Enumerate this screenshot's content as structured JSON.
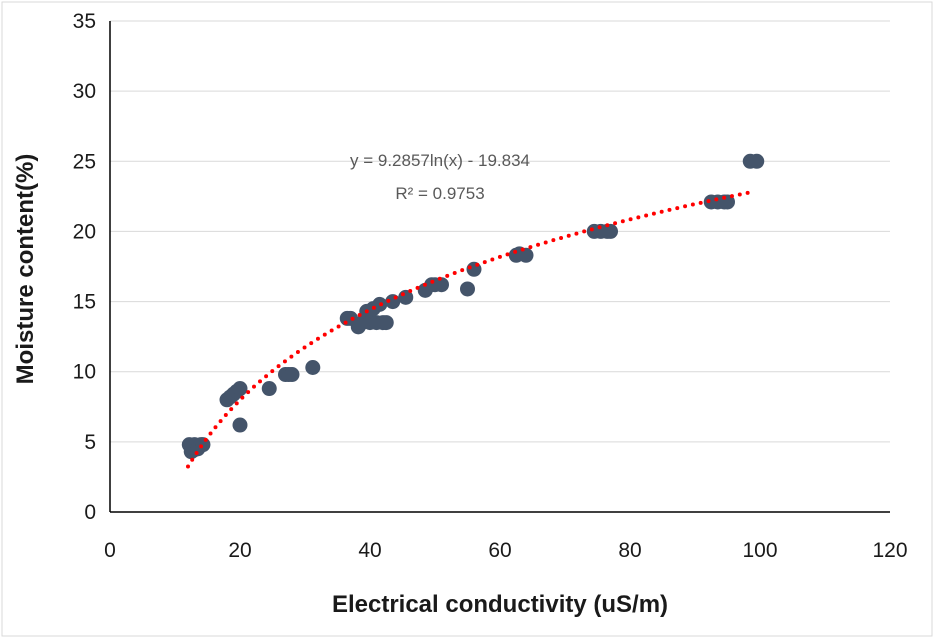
{
  "chart_data": {
    "type": "scatter",
    "title": "",
    "xlabel": "Electrical conductivity (uS/m)",
    "ylabel": "Moisture content(%)",
    "xlim": [
      0,
      120
    ],
    "ylim": [
      0,
      35
    ],
    "xticks": [
      0,
      20,
      40,
      60,
      80,
      100,
      120
    ],
    "yticks": [
      0,
      5,
      10,
      15,
      20,
      25,
      30,
      35
    ],
    "grid": "horizontal",
    "legend": "none",
    "colors": {
      "points": "#44546a",
      "trendline": "#ff0000",
      "grid": "#d9d9d9",
      "axis": "#000000"
    },
    "series": [
      {
        "marker": "circle",
        "x": [
          12.2,
          12.5,
          12.8,
          13.0,
          13.5,
          14.0,
          14.3,
          18.0,
          18.5,
          19.0,
          19.5,
          20.0,
          20.0,
          24.5,
          27.0,
          27.5,
          28.0,
          31.2,
          36.5,
          37.0,
          38.2,
          38.8,
          39.5,
          40.0,
          40.5,
          41.0,
          41.5,
          42.0,
          42.5,
          43.5,
          45.5,
          48.5,
          49.5,
          50.0,
          51.0,
          55.0,
          56.0,
          62.5,
          63.0,
          64.0,
          74.5,
          75.5,
          76.5,
          77.0,
          92.5,
          93.5,
          94.5,
          95.0,
          98.5,
          99.5
        ],
        "y": [
          4.8,
          4.3,
          4.4,
          4.8,
          4.5,
          4.8,
          4.8,
          8.0,
          8.2,
          8.4,
          8.6,
          8.8,
          6.2,
          8.8,
          9.8,
          9.8,
          9.8,
          10.3,
          13.8,
          13.8,
          13.2,
          13.5,
          14.3,
          13.5,
          14.5,
          13.5,
          14.8,
          13.5,
          13.5,
          15.0,
          15.3,
          15.8,
          16.2,
          16.2,
          16.2,
          15.9,
          17.3,
          18.3,
          18.4,
          18.3,
          20.0,
          20.0,
          20.0,
          20.0,
          22.1,
          22.1,
          22.1,
          22.1,
          25.0,
          25.0
        ]
      }
    ],
    "trendline": {
      "type": "logarithmic",
      "a": 9.2857,
      "b": -19.834,
      "x_range": [
        12,
        99
      ],
      "equation_label": "y = 9.2857ln(x) - 19.834",
      "r2_label": "R² = 0.9753"
    }
  }
}
